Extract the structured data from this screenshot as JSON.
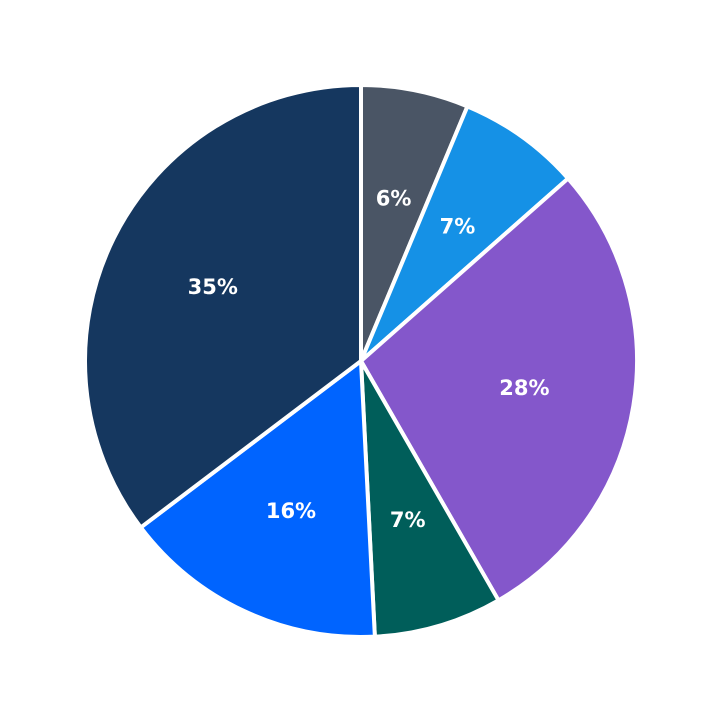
{
  "chart_data": {
    "type": "pie",
    "title": "",
    "start_angle": "12 o'clock, clockwise",
    "slices": [
      {
        "label": "6%",
        "value": 6.3,
        "color": "#4a5565"
      },
      {
        "label": "7%",
        "value": 7.2,
        "color": "#1591e6"
      },
      {
        "label": "28%",
        "value": 28.2,
        "color": "#8457cb"
      },
      {
        "label": "7%",
        "value": 7.5,
        "color": "#005e5a"
      },
      {
        "label": "16%",
        "value": 15.5,
        "color": "#0064ff"
      },
      {
        "label": "35%",
        "value": 35.3,
        "color": "#15375f"
      }
    ],
    "legend": null,
    "label_color": "#ffffff",
    "edge_color": "#ffffff"
  }
}
